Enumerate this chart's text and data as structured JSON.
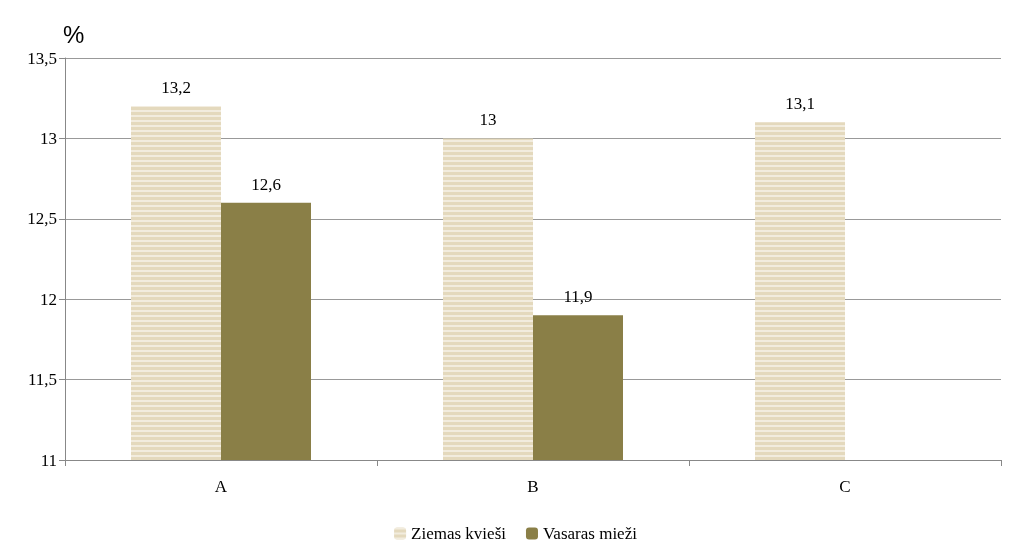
{
  "chart_data": {
    "type": "bar",
    "ylabel": "%",
    "categories": [
      "A",
      "B",
      "C"
    ],
    "series": [
      {
        "name": "Ziemas kvieši",
        "color": "#e4d9bd",
        "values": [
          13.2,
          13,
          13.1
        ],
        "value_labels": [
          "13,2",
          "13",
          "13,1"
        ]
      },
      {
        "name": "Vasaras mieži",
        "color": "#8a7f47",
        "values": [
          12.6,
          11.9,
          null
        ],
        "value_labels": [
          "12,6",
          "11,9",
          null
        ]
      }
    ],
    "ylim": [
      11,
      13.5
    ],
    "yticks": [
      11,
      {
        "value": 11.5,
        "label": "11,5"
      },
      12,
      {
        "value": 12.5,
        "label": "12,5"
      },
      13,
      {
        "value": 13.5,
        "label": "13,5"
      }
    ],
    "grid": "y",
    "legend": "bottom"
  }
}
